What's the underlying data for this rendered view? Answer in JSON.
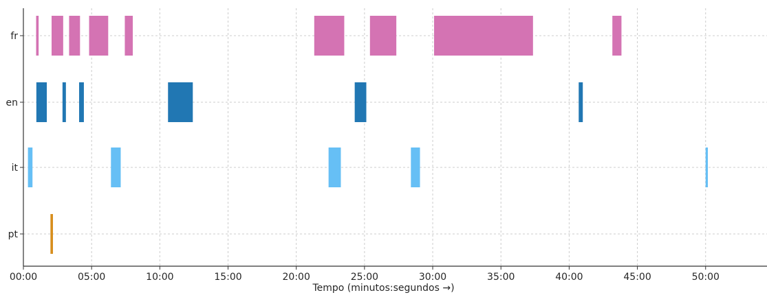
{
  "chart_data": {
    "type": "bar",
    "subtype": "broken-barh-timeline",
    "xlabel": "Tempo (minutos:segundos →)",
    "ylabel": "",
    "title": "",
    "xlim": [
      0,
      3270
    ],
    "x_unit": "seconds",
    "grid": true,
    "categories": [
      "fr",
      "en",
      "it",
      "pt"
    ],
    "x_ticks": [
      {
        "value": 0,
        "label": "00:00"
      },
      {
        "value": 300,
        "label": "05:00"
      },
      {
        "value": 600,
        "label": "10:00"
      },
      {
        "value": 900,
        "label": "15:00"
      },
      {
        "value": 1200,
        "label": "20:00"
      },
      {
        "value": 1500,
        "label": "25:00"
      },
      {
        "value": 1800,
        "label": "30:00"
      },
      {
        "value": 2100,
        "label": "35:00"
      },
      {
        "value": 2400,
        "label": "40:00"
      },
      {
        "value": 2700,
        "label": "45:00"
      },
      {
        "value": 3000,
        "label": "50:00"
      }
    ],
    "series": [
      {
        "category": "fr",
        "color": "#d473b3",
        "segments": [
          {
            "start": 56,
            "end": 67
          },
          {
            "start": 124,
            "end": 175
          },
          {
            "start": 201,
            "end": 249
          },
          {
            "start": 289,
            "end": 373
          },
          {
            "start": 446,
            "end": 481
          },
          {
            "start": 1279,
            "end": 1411
          },
          {
            "start": 1524,
            "end": 1640
          },
          {
            "start": 1806,
            "end": 2241
          },
          {
            "start": 2590,
            "end": 2630
          }
        ]
      },
      {
        "category": "en",
        "color": "#2177b3",
        "segments": [
          {
            "start": 57,
            "end": 103
          },
          {
            "start": 172,
            "end": 187
          },
          {
            "start": 245,
            "end": 266
          },
          {
            "start": 636,
            "end": 745
          },
          {
            "start": 1457,
            "end": 1508
          },
          {
            "start": 2442,
            "end": 2460
          }
        ]
      },
      {
        "category": "it",
        "color": "#66bff5",
        "segments": [
          {
            "start": 20,
            "end": 40
          },
          {
            "start": 385,
            "end": 428
          },
          {
            "start": 1342,
            "end": 1396
          },
          {
            "start": 1704,
            "end": 1744
          },
          {
            "start": 3000,
            "end": 3010
          }
        ]
      },
      {
        "category": "pt",
        "color": "#d78e1c",
        "segments": [
          {
            "start": 119,
            "end": 130
          }
        ]
      }
    ]
  }
}
